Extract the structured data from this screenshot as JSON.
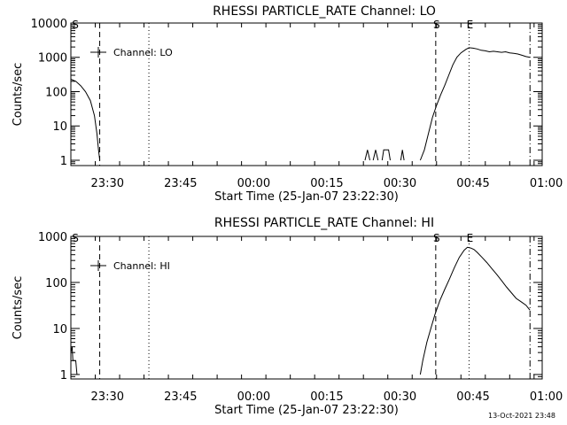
{
  "footer": {
    "timestamp": "13-Oct-2021 23:48"
  },
  "chart_data": [
    {
      "type": "line",
      "title": "RHESSI PARTICLE_RATE Channel: LO",
      "xlabel": "Start Time (25-Jan-07 23:22:30)",
      "ylabel": "Counts/sec",
      "yscale": "log",
      "xlim": [
        0,
        5800
      ],
      "ylim": [
        0.7,
        10000
      ],
      "x_ticks": [
        {
          "x": 450,
          "label": "23:30"
        },
        {
          "x": 1350,
          "label": "23:45"
        },
        {
          "x": 2250,
          "label": "00:00"
        },
        {
          "x": 3150,
          "label": "00:15"
        },
        {
          "x": 4050,
          "label": "00:30"
        },
        {
          "x": 4950,
          "label": "00:45"
        },
        {
          "x": 5850,
          "label": "01:00"
        }
      ],
      "y_ticks": [
        {
          "y": 1,
          "label": "1"
        },
        {
          "y": 10,
          "label": "10"
        },
        {
          "y": 100,
          "label": "100"
        },
        {
          "y": 1000,
          "label": "1000"
        },
        {
          "y": 10000,
          "label": "10000"
        }
      ],
      "legend": {
        "label": "Channel: LO",
        "position": "top-left"
      },
      "markers": [
        {
          "x": 355,
          "label": "",
          "style": "dashed"
        },
        {
          "x": 960,
          "label": "",
          "style": "dotted"
        },
        {
          "x": 4490,
          "label": "S",
          "style": "dashed"
        },
        {
          "x": 4900,
          "label": "E",
          "style": "dotted"
        },
        {
          "x": 5650,
          "label": "",
          "style": "dashdot"
        }
      ],
      "corner_label": "S",
      "series": [
        {
          "segments": [
            [
              [
                0,
                230
              ],
              [
                60,
                200
              ],
              [
                120,
                150
              ],
              [
                180,
                100
              ],
              [
                240,
                55
              ],
              [
                290,
                20
              ],
              [
                320,
                6
              ],
              [
                340,
                2
              ],
              [
                355,
                1
              ]
            ],
            [
              [
                3620,
                1
              ],
              [
                3650,
                2
              ],
              [
                3680,
                1
              ]
            ],
            [
              [
                3720,
                1
              ],
              [
                3750,
                2
              ],
              [
                3780,
                1
              ]
            ],
            [
              [
                3830,
                1
              ],
              [
                3850,
                2
              ],
              [
                3910,
                2
              ],
              [
                3930,
                1
              ]
            ],
            [
              [
                4060,
                1
              ],
              [
                4080,
                2
              ],
              [
                4100,
                1
              ]
            ],
            [
              [
                4300,
                1
              ],
              [
                4350,
                2
              ],
              [
                4400,
                6
              ],
              [
                4450,
                18
              ],
              [
                4500,
                40
              ],
              [
                4550,
                80
              ],
              [
                4600,
                150
              ],
              [
                4650,
                300
              ],
              [
                4700,
                600
              ],
              [
                4750,
                1000
              ],
              [
                4800,
                1350
              ],
              [
                4860,
                1700
              ],
              [
                4900,
                1900
              ],
              [
                4950,
                1850
              ],
              [
                5000,
                1750
              ],
              [
                5050,
                1600
              ],
              [
                5100,
                1550
              ],
              [
                5150,
                1450
              ],
              [
                5200,
                1500
              ],
              [
                5250,
                1450
              ],
              [
                5300,
                1400
              ],
              [
                5350,
                1450
              ],
              [
                5400,
                1350
              ],
              [
                5450,
                1300
              ],
              [
                5500,
                1250
              ],
              [
                5550,
                1150
              ],
              [
                5600,
                1050
              ],
              [
                5650,
                1000
              ]
            ]
          ]
        }
      ]
    },
    {
      "type": "line",
      "title": "RHESSI PARTICLE_RATE Channel: HI",
      "xlabel": "Start Time (25-Jan-07 23:22:30)",
      "ylabel": "Counts/sec",
      "yscale": "log",
      "xlim": [
        0,
        5800
      ],
      "ylim": [
        0.8,
        1000
      ],
      "x_ticks": [
        {
          "x": 450,
          "label": "23:30"
        },
        {
          "x": 1350,
          "label": "23:45"
        },
        {
          "x": 2250,
          "label": "00:00"
        },
        {
          "x": 3150,
          "label": "00:15"
        },
        {
          "x": 4050,
          "label": "00:30"
        },
        {
          "x": 4950,
          "label": "00:45"
        },
        {
          "x": 5850,
          "label": "01:00"
        }
      ],
      "y_ticks": [
        {
          "y": 1,
          "label": "1"
        },
        {
          "y": 10,
          "label": "10"
        },
        {
          "y": 100,
          "label": "100"
        },
        {
          "y": 1000,
          "label": "1000"
        }
      ],
      "legend": {
        "label": "Channel: HI",
        "position": "top-left"
      },
      "markers": [
        {
          "x": 355,
          "label": "",
          "style": "dashed"
        },
        {
          "x": 960,
          "label": "",
          "style": "dotted"
        },
        {
          "x": 4490,
          "label": "S",
          "style": "dashed"
        },
        {
          "x": 4900,
          "label": "E",
          "style": "dotted"
        },
        {
          "x": 5650,
          "label": "",
          "style": "dashdot"
        }
      ],
      "corner_label": "S",
      "series": [
        {
          "segments": [
            [
              [
                0,
                3
              ],
              [
                15,
                4
              ],
              [
                25,
                2
              ],
              [
                40,
                2
              ],
              [
                60,
                2
              ],
              [
                75,
                1
              ]
            ],
            [
              [
                4300,
                1
              ],
              [
                4330,
                2
              ],
              [
                4380,
                5
              ],
              [
                4430,
                10
              ],
              [
                4480,
                20
              ],
              [
                4540,
                40
              ],
              [
                4600,
                70
              ],
              [
                4660,
                120
              ],
              [
                4720,
                210
              ],
              [
                4780,
                350
              ],
              [
                4840,
                500
              ],
              [
                4880,
                580
              ],
              [
                4920,
                560
              ],
              [
                4960,
                520
              ],
              [
                5000,
                450
              ],
              [
                5060,
                350
              ],
              [
                5120,
                270
              ],
              [
                5180,
                200
              ],
              [
                5240,
                150
              ],
              [
                5300,
                110
              ],
              [
                5360,
                80
              ],
              [
                5420,
                60
              ],
              [
                5480,
                45
              ],
              [
                5540,
                38
              ],
              [
                5600,
                32
              ],
              [
                5650,
                25
              ]
            ]
          ]
        }
      ]
    }
  ]
}
